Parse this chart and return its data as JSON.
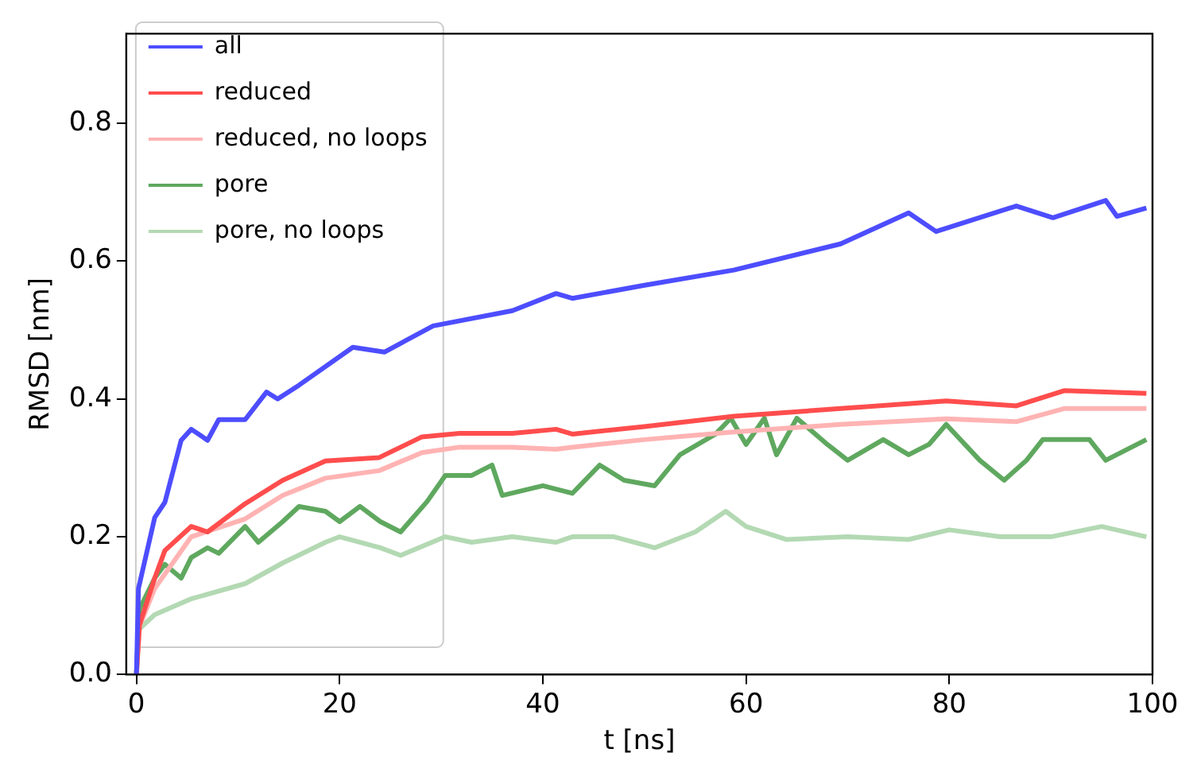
{
  "chart_data": {
    "type": "line",
    "xlabel": "t [ns]",
    "ylabel": "RMSD [nm]",
    "xlim": [
      -1,
      100
    ],
    "ylim": [
      0,
      0.93
    ],
    "xticks": [
      0,
      20,
      40,
      60,
      80,
      100
    ],
    "yticks": [
      {
        "value": 0,
        "label": "0.0"
      },
      0.2,
      0.4,
      0.6,
      0.8
    ],
    "grid": false,
    "legend": "top left",
    "marker": "none",
    "line_style": "solid",
    "series": [
      {
        "name": "all",
        "color": "#4d4dff",
        "x": [
          0,
          0.2,
          1.8,
          2.8,
          4.4,
          5.4,
          7,
          8.1,
          10.7,
          12.8,
          13.9,
          16,
          21.3,
          24.4,
          29.2,
          37,
          41.3,
          42.9,
          50,
          58.8,
          69.3,
          76,
          78.7,
          86.6,
          90.2,
          95.4,
          96.5,
          99.4
        ],
        "values": [
          0,
          0.125,
          0.228,
          0.25,
          0.34,
          0.356,
          0.34,
          0.37,
          0.37,
          0.41,
          0.4,
          0.42,
          0.475,
          0.468,
          0.506,
          0.528,
          0.553,
          0.546,
          0.565,
          0.587,
          0.625,
          0.67,
          0.643,
          0.68,
          0.663,
          0.688,
          0.665,
          0.677
        ]
      },
      {
        "name": "reduced",
        "color": "#ff4d4d",
        "x": [
          0,
          0.3,
          1.8,
          2.8,
          5.4,
          7,
          10.7,
          14.4,
          18.6,
          23.9,
          28.1,
          31.8,
          37,
          41.3,
          42.9,
          50,
          58.8,
          69.3,
          79.7,
          86.6,
          91.3,
          99.4
        ],
        "values": [
          0,
          0.072,
          0.14,
          0.18,
          0.215,
          0.207,
          0.248,
          0.282,
          0.31,
          0.315,
          0.345,
          0.35,
          0.35,
          0.356,
          0.349,
          0.36,
          0.375,
          0.386,
          0.397,
          0.39,
          0.412,
          0.408
        ]
      },
      {
        "name": "reduced, no loops",
        "color": "#ffb3b3",
        "x": [
          0,
          0.3,
          1.8,
          5.4,
          10.7,
          14.4,
          18.6,
          23.9,
          28.1,
          31.8,
          37,
          41.3,
          42.9,
          50,
          58.8,
          69.3,
          79.7,
          86.6,
          91.3,
          99.4
        ],
        "values": [
          0,
          0.07,
          0.125,
          0.2,
          0.226,
          0.26,
          0.285,
          0.296,
          0.322,
          0.33,
          0.33,
          0.327,
          0.33,
          0.341,
          0.352,
          0.363,
          0.371,
          0.367,
          0.386,
          0.386
        ]
      },
      {
        "name": "pore",
        "color": "#5fa85f",
        "x": [
          0,
          0.3,
          1.8,
          2.8,
          4.4,
          5.4,
          7,
          8.1,
          10.7,
          12,
          14.4,
          16,
          18.6,
          20,
          22,
          24,
          26,
          28.6,
          30.4,
          33,
          35,
          36,
          40,
          42.9,
          45.6,
          48,
          51,
          53.5,
          57,
          58.5,
          60,
          61.8,
          63,
          65,
          68,
          70,
          73.5,
          76,
          78,
          79.7,
          83,
          85.4,
          87.6,
          89.2,
          93.8,
          95.4,
          99.4
        ],
        "values": [
          0,
          0.095,
          0.14,
          0.16,
          0.14,
          0.17,
          0.184,
          0.176,
          0.215,
          0.192,
          0.222,
          0.244,
          0.237,
          0.222,
          0.244,
          0.222,
          0.207,
          0.251,
          0.289,
          0.289,
          0.304,
          0.26,
          0.274,
          0.263,
          0.304,
          0.282,
          0.274,
          0.319,
          0.349,
          0.372,
          0.334,
          0.372,
          0.319,
          0.372,
          0.334,
          0.311,
          0.341,
          0.319,
          0.334,
          0.363,
          0.311,
          0.282,
          0.311,
          0.341,
          0.341,
          0.311,
          0.341
        ]
      },
      {
        "name": "pore, no loops",
        "color": "#b3d9b3",
        "x": [
          0,
          0.2,
          1.8,
          5.4,
          10.7,
          14.4,
          18.6,
          20,
          24,
          26,
          30.4,
          33,
          37,
          41.3,
          42.9,
          47,
          51,
          55,
          58,
          60,
          64,
          70,
          76,
          80,
          85,
          90,
          95,
          99.4
        ],
        "values": [
          0,
          0.065,
          0.087,
          0.11,
          0.132,
          0.162,
          0.192,
          0.2,
          0.184,
          0.173,
          0.2,
          0.192,
          0.2,
          0.192,
          0.2,
          0.2,
          0.184,
          0.207,
          0.237,
          0.215,
          0.196,
          0.2,
          0.196,
          0.21,
          0.2,
          0.2,
          0.215,
          0.2
        ]
      }
    ]
  }
}
